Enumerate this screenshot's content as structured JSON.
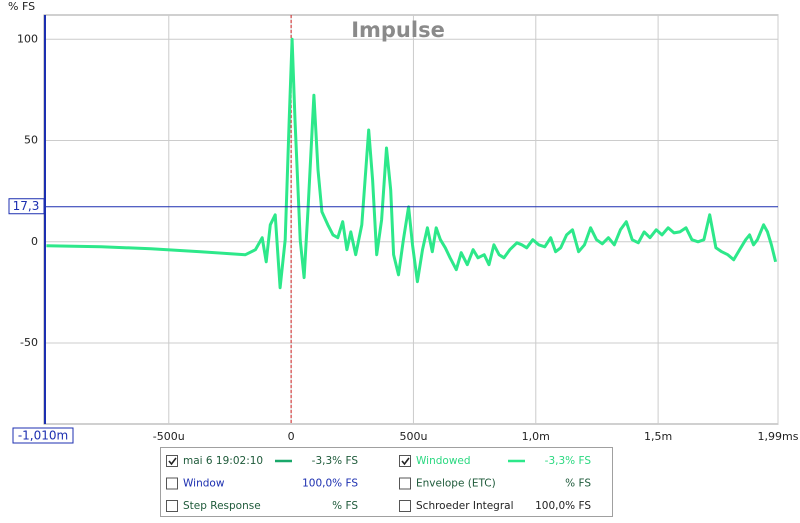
{
  "chart_data": {
    "type": "line",
    "title": "Impulse",
    "y_label": "% FS",
    "xlim": [
      -1.01,
      1.99
    ],
    "ylim": [
      -90,
      112
    ],
    "xticks": [
      {
        "value": -0.5,
        "label": "-500u"
      },
      0,
      {
        "value": 0.5,
        "label": "500u"
      },
      {
        "value": 1,
        "label": "1,0m"
      },
      {
        "value": 1.5,
        "label": "1,5m"
      },
      {
        "value": 1.99,
        "label": "1,99ms"
      }
    ],
    "yticks": [
      -50,
      0,
      50,
      100
    ],
    "grid": true,
    "cursor_x": {
      "value": -1.01,
      "label": "-1,010m"
    },
    "cursor_y": {
      "value": 17.3,
      "label": "17,3"
    },
    "x": [
      -1.0,
      -0.776,
      -0.573,
      -0.37,
      -0.248,
      -0.187,
      -0.146,
      -0.118,
      -0.102,
      -0.085,
      -0.065,
      -0.045,
      -0.024,
      -0.008,
      0.004,
      0.016,
      0.037,
      0.053,
      0.069,
      0.093,
      0.11,
      0.126,
      0.15,
      0.171,
      0.191,
      0.211,
      0.228,
      0.244,
      0.264,
      0.289,
      0.317,
      0.333,
      0.35,
      0.37,
      0.39,
      0.407,
      0.419,
      0.439,
      0.459,
      0.48,
      0.496,
      0.516,
      0.537,
      0.557,
      0.577,
      0.593,
      0.61,
      0.63,
      0.65,
      0.675,
      0.695,
      0.72,
      0.744,
      0.764,
      0.789,
      0.809,
      0.829,
      0.85,
      0.87,
      0.894,
      0.923,
      0.943,
      0.963,
      0.988,
      1.012,
      1.037,
      1.061,
      1.081,
      1.102,
      1.126,
      1.15,
      1.175,
      1.199,
      1.224,
      1.248,
      1.272,
      1.297,
      1.321,
      1.346,
      1.37,
      1.394,
      1.419,
      1.443,
      1.467,
      1.492,
      1.516,
      1.541,
      1.565,
      1.589,
      1.614,
      1.638,
      1.663,
      1.687,
      1.711,
      1.736,
      1.76,
      1.785,
      1.809,
      1.833,
      1.858,
      1.874,
      1.89,
      1.906,
      1.931,
      1.947,
      1.963,
      1.98
    ],
    "series": [
      {
        "name": "Windowed",
        "color": "#2de88a",
        "values": [
          -2.0,
          -2.5,
          -3.4,
          -4.9,
          -5.9,
          -6.4,
          -3.9,
          2.0,
          -9.9,
          8.4,
          13.3,
          -22.7,
          1.0,
          60.1,
          100,
          60.1,
          1.0,
          -17.7,
          15.8,
          72.4,
          35.5,
          14.8,
          8.4,
          3.4,
          2.0,
          9.9,
          -3.9,
          4.9,
          -6.4,
          8.4,
          55.2,
          30.5,
          -6.4,
          10.8,
          46.3,
          25.6,
          -6.4,
          -16.3,
          1.0,
          17.2,
          -1.5,
          -19.7,
          -3.9,
          6.9,
          -4.9,
          6.9,
          1.0,
          -3.0,
          -7.9,
          -13.8,
          -5.4,
          -11.3,
          -3.9,
          -7.9,
          -6.4,
          -11.3,
          -1.5,
          -6.4,
          -7.9,
          -3.9,
          -0.5,
          -1.5,
          -3.0,
          1.0,
          -1.5,
          -2.5,
          2.0,
          -4.9,
          -3.0,
          3.4,
          5.9,
          -4.9,
          -1.5,
          6.9,
          1.0,
          -1.0,
          2.0,
          -1.5,
          5.9,
          9.9,
          1.0,
          -0.5,
          4.9,
          2.0,
          5.9,
          3.4,
          6.9,
          4.4,
          4.9,
          6.9,
          1.0,
          0,
          1.0,
          13.3,
          -3.0,
          -4.9,
          -6.4,
          -8.9,
          -3.9,
          1.0,
          3.4,
          -1.5,
          1.0,
          8.4,
          4.9,
          -1.5,
          -9.9
        ]
      }
    ],
    "legend": [
      {
        "name": "mai 6 19:02:10",
        "value": "-3,3% FS",
        "checked": true,
        "text_color": "#1e5a3a",
        "line_color": "#1aa86a"
      },
      {
        "name": "Windowed",
        "value": "-3,3% FS",
        "checked": true,
        "text_color": "#2ad880",
        "line_color": "#2de88a"
      },
      {
        "name": "Window",
        "value": "100,0% FS",
        "checked": false,
        "text_color": "#1c2fb0"
      },
      {
        "name": "Envelope (ETC)",
        "value": "% FS",
        "checked": false,
        "text_color": "#1e5a3a"
      },
      {
        "name": "Step Response",
        "value": "% FS",
        "checked": false,
        "text_color": "#1e5a3a"
      },
      {
        "name": "Schroeder Integral",
        "value": "100,0% FS",
        "checked": false,
        "text_color": "#222222"
      }
    ]
  }
}
